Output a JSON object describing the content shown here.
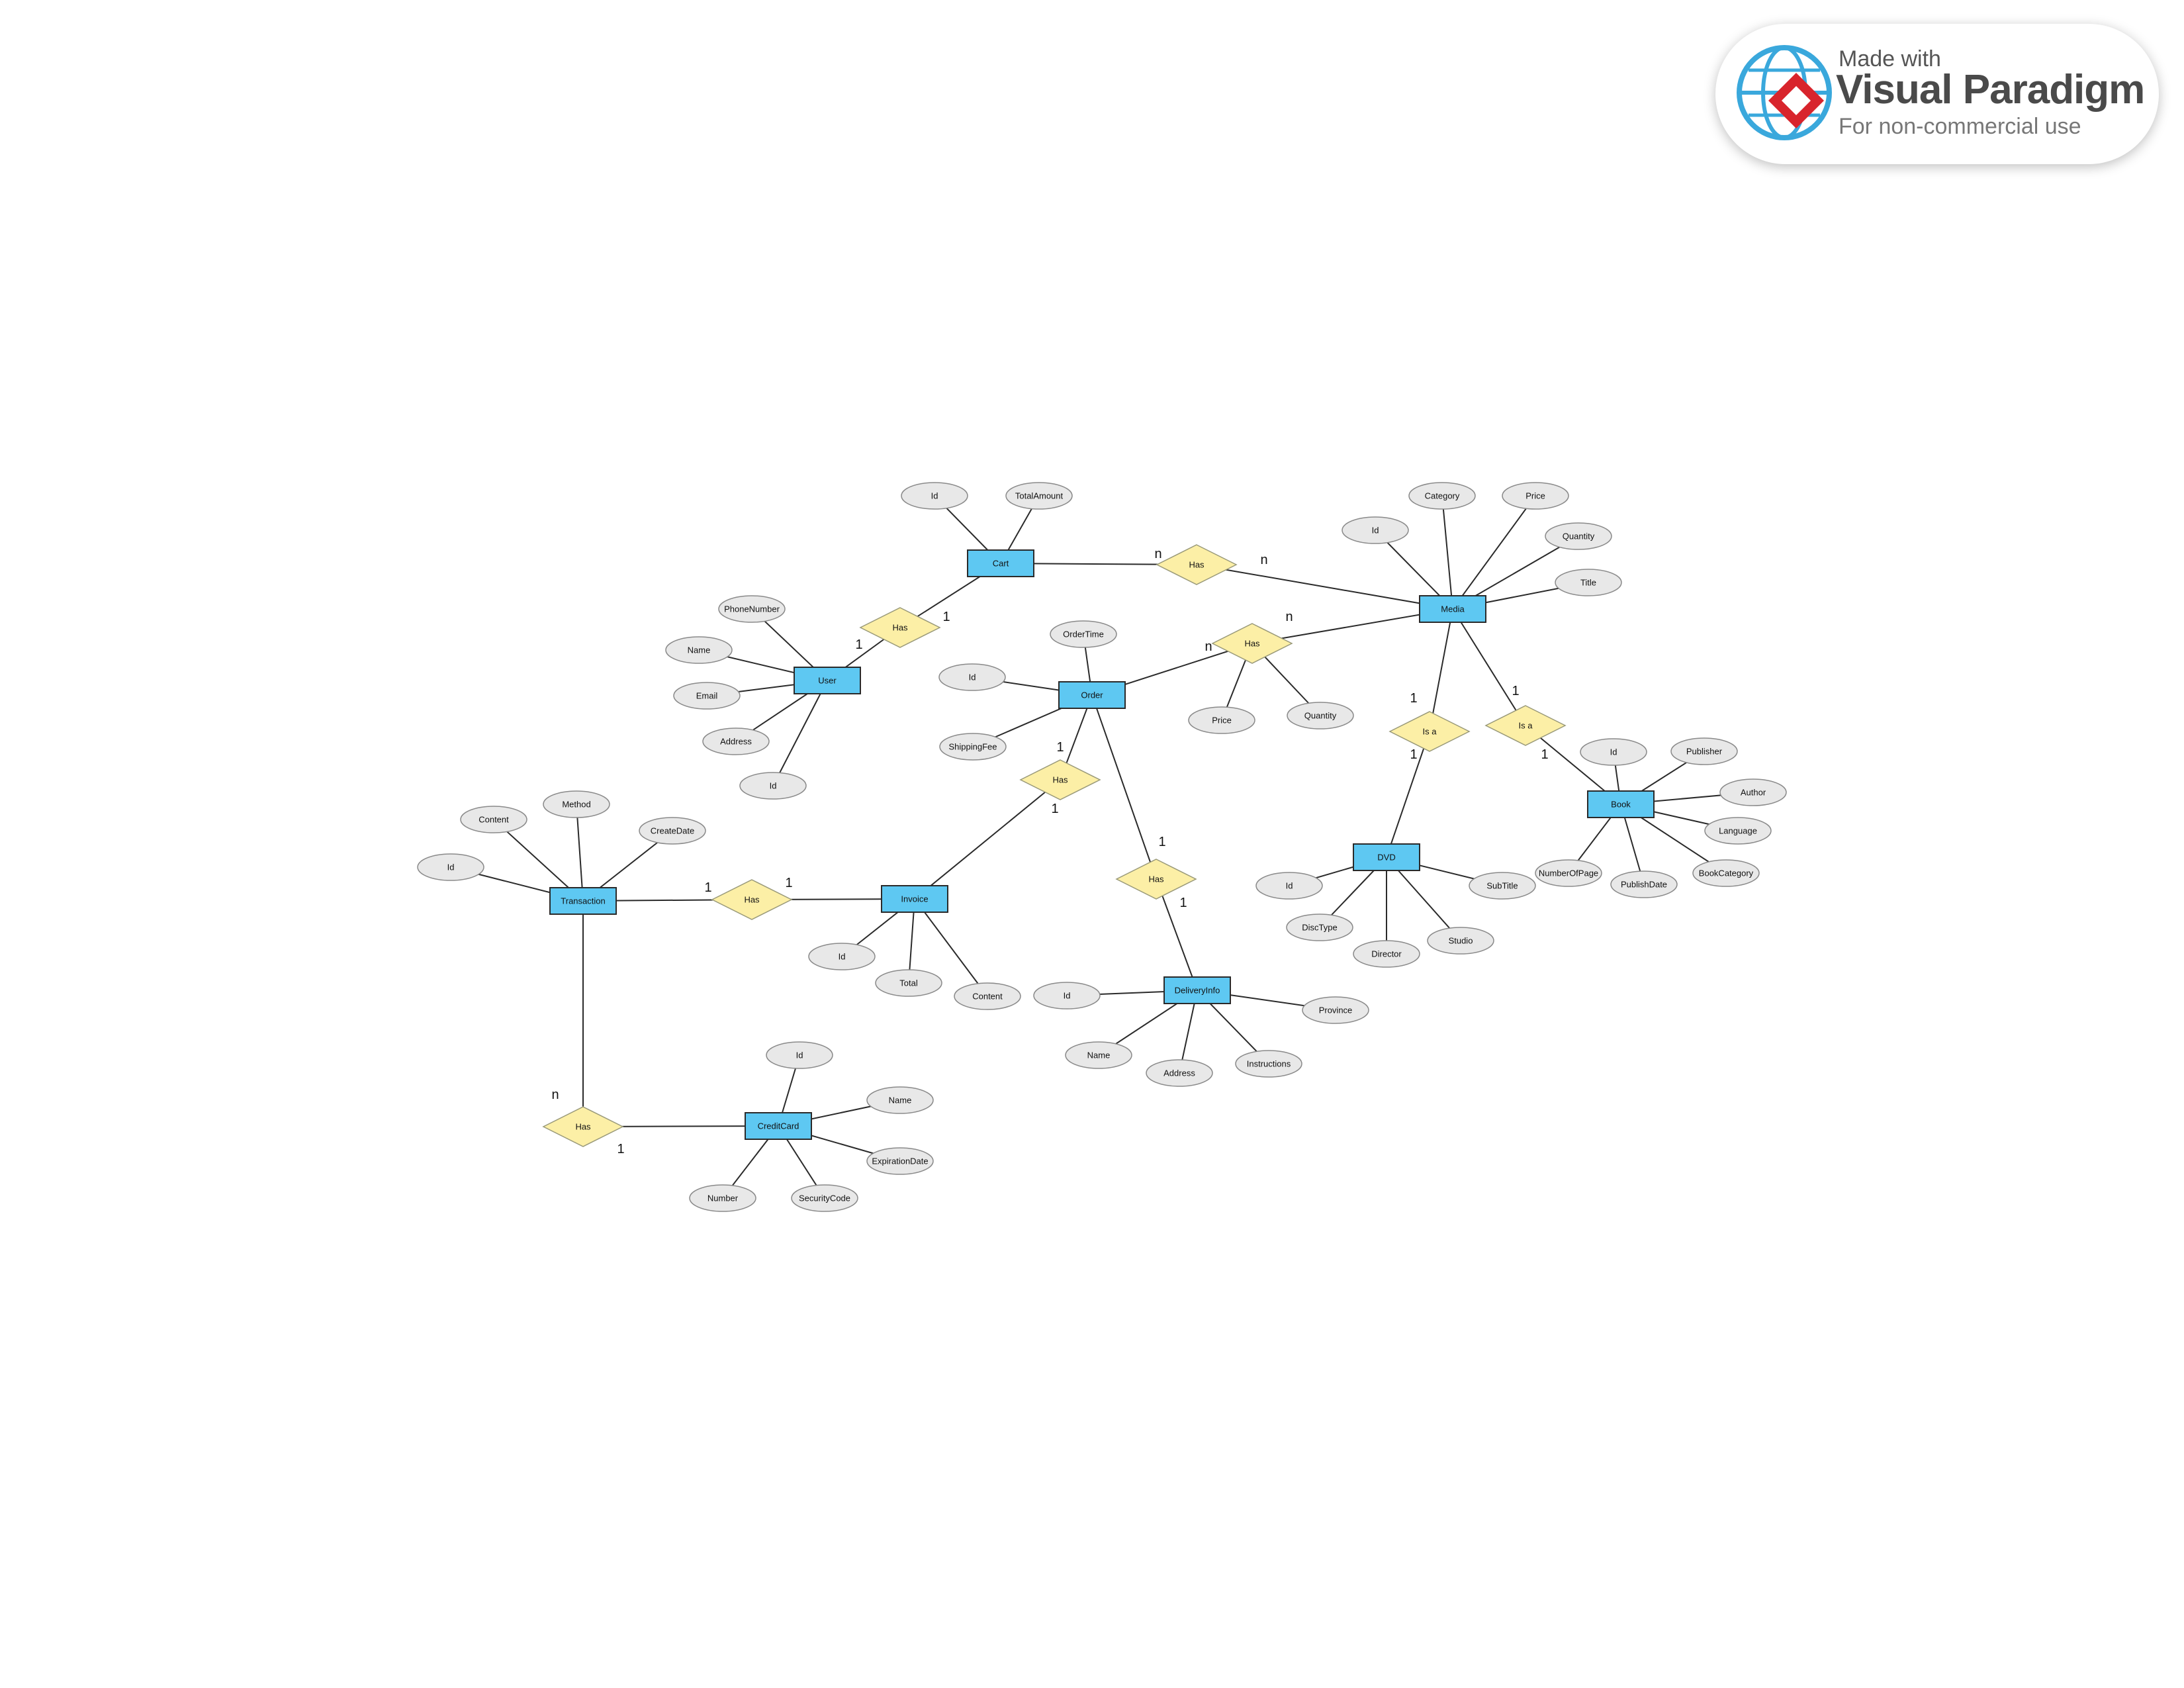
{
  "entities": [
    {
      "id": "cart",
      "label": "Cart"
    },
    {
      "id": "media",
      "label": "Media"
    },
    {
      "id": "user",
      "label": "User"
    },
    {
      "id": "order",
      "label": "Order"
    },
    {
      "id": "invoice",
      "label": "Invoice"
    },
    {
      "id": "transaction",
      "label": "Transaction"
    },
    {
      "id": "creditcard",
      "label": "CreditCard"
    },
    {
      "id": "deliveryinfo",
      "label": "DeliveryInfo"
    },
    {
      "id": "dvd",
      "label": "DVD"
    },
    {
      "id": "book",
      "label": "Book"
    }
  ],
  "relationships": [
    {
      "id": "r-user-cart",
      "label": "Has"
    },
    {
      "id": "r-cart-media",
      "label": "Has"
    },
    {
      "id": "r-order-media",
      "label": "Has"
    },
    {
      "id": "r-order-invoice",
      "label": "Has"
    },
    {
      "id": "r-order-delivery",
      "label": "Has"
    },
    {
      "id": "r-transaction-invoice",
      "label": "Has"
    },
    {
      "id": "r-transaction-card",
      "label": "Has"
    },
    {
      "id": "r-media-dvd",
      "label": "Is a"
    },
    {
      "id": "r-media-book",
      "label": "Is a"
    }
  ],
  "attributes": [
    {
      "id": "cart-id",
      "owner": "cart",
      "label": "Id"
    },
    {
      "id": "cart-total",
      "owner": "cart",
      "label": "TotalAmount"
    },
    {
      "id": "media-id",
      "owner": "media",
      "label": "Id"
    },
    {
      "id": "media-category",
      "owner": "media",
      "label": "Category"
    },
    {
      "id": "media-price",
      "owner": "media",
      "label": "Price"
    },
    {
      "id": "media-quantity",
      "owner": "media",
      "label": "Quantity"
    },
    {
      "id": "media-title",
      "owner": "media",
      "label": "Title"
    },
    {
      "id": "user-phone",
      "owner": "user",
      "label": "PhoneNumber"
    },
    {
      "id": "user-name",
      "owner": "user",
      "label": "Name"
    },
    {
      "id": "user-email",
      "owner": "user",
      "label": "Email"
    },
    {
      "id": "user-address",
      "owner": "user",
      "label": "Address"
    },
    {
      "id": "user-id",
      "owner": "user",
      "label": "Id"
    },
    {
      "id": "order-time",
      "owner": "order",
      "label": "OrderTime"
    },
    {
      "id": "order-id",
      "owner": "order",
      "label": "Id"
    },
    {
      "id": "order-shipping",
      "owner": "order",
      "label": "ShippingFee"
    },
    {
      "id": "om-price",
      "owner": "r-order-media",
      "label": "Price"
    },
    {
      "id": "om-quantity",
      "owner": "r-order-media",
      "label": "Quantity"
    },
    {
      "id": "invoice-id",
      "owner": "invoice",
      "label": "Id"
    },
    {
      "id": "invoice-total",
      "owner": "invoice",
      "label": "Total"
    },
    {
      "id": "invoice-content",
      "owner": "invoice",
      "label": "Content"
    },
    {
      "id": "tx-content",
      "owner": "transaction",
      "label": "Content"
    },
    {
      "id": "tx-method",
      "owner": "transaction",
      "label": "Method"
    },
    {
      "id": "tx-createdate",
      "owner": "transaction",
      "label": "CreateDate"
    },
    {
      "id": "tx-id",
      "owner": "transaction",
      "label": "Id"
    },
    {
      "id": "cc-id",
      "owner": "creditcard",
      "label": "Id"
    },
    {
      "id": "cc-name",
      "owner": "creditcard",
      "label": "Name"
    },
    {
      "id": "cc-expiration",
      "owner": "creditcard",
      "label": "ExpirationDate"
    },
    {
      "id": "cc-number",
      "owner": "creditcard",
      "label": "Number"
    },
    {
      "id": "cc-security",
      "owner": "creditcard",
      "label": "SecurityCode"
    },
    {
      "id": "di-id",
      "owner": "deliveryinfo",
      "label": "Id"
    },
    {
      "id": "di-province",
      "owner": "deliveryinfo",
      "label": "Province"
    },
    {
      "id": "di-name",
      "owner": "deliveryinfo",
      "label": "Name"
    },
    {
      "id": "di-address",
      "owner": "deliveryinfo",
      "label": "Address"
    },
    {
      "id": "di-instructions",
      "owner": "deliveryinfo",
      "label": "Instructions"
    },
    {
      "id": "dvd-id",
      "owner": "dvd",
      "label": "Id"
    },
    {
      "id": "dvd-disctype",
      "owner": "dvd",
      "label": "DiscType"
    },
    {
      "id": "dvd-director",
      "owner": "dvd",
      "label": "Director"
    },
    {
      "id": "dvd-studio",
      "owner": "dvd",
      "label": "Studio"
    },
    {
      "id": "dvd-subtitle",
      "owner": "dvd",
      "label": "SubTitle"
    },
    {
      "id": "book-id",
      "owner": "book",
      "label": "Id"
    },
    {
      "id": "book-publisher",
      "owner": "book",
      "label": "Publisher"
    },
    {
      "id": "book-author",
      "owner": "book",
      "label": "Author"
    },
    {
      "id": "book-language",
      "owner": "book",
      "label": "Language"
    },
    {
      "id": "book-category",
      "owner": "book",
      "label": "BookCategory"
    },
    {
      "id": "book-publishdate",
      "owner": "book",
      "label": "PublishDate"
    },
    {
      "id": "book-pages",
      "owner": "book",
      "label": "NumberOfPage"
    }
  ],
  "connections": [
    {
      "from": "user",
      "to": "r-user-cart",
      "card": "1"
    },
    {
      "from": "cart",
      "to": "r-user-cart",
      "card": "1"
    },
    {
      "from": "cart",
      "to": "r-cart-media",
      "card": "n"
    },
    {
      "from": "media",
      "to": "r-cart-media",
      "card": "n"
    },
    {
      "from": "order",
      "to": "r-order-media",
      "card": "n"
    },
    {
      "from": "media",
      "to": "r-order-media",
      "card": "n"
    },
    {
      "from": "order",
      "to": "r-order-invoice",
      "card": "1"
    },
    {
      "from": "invoice",
      "to": "r-order-invoice",
      "card": "1"
    },
    {
      "from": "order",
      "to": "r-order-delivery",
      "card": "1"
    },
    {
      "from": "deliveryinfo",
      "to": "r-order-delivery",
      "card": "1"
    },
    {
      "from": "transaction",
      "to": "r-transaction-invoice",
      "card": "1"
    },
    {
      "from": "invoice",
      "to": "r-transaction-invoice",
      "card": "1"
    },
    {
      "from": "transaction",
      "to": "r-transaction-card",
      "card": "n"
    },
    {
      "from": "creditcard",
      "to": "r-transaction-card",
      "card": "1"
    },
    {
      "from": "media",
      "to": "r-media-dvd",
      "card": "1"
    },
    {
      "from": "dvd",
      "to": "r-media-dvd",
      "card": "1"
    },
    {
      "from": "media",
      "to": "r-media-book",
      "card": "1"
    },
    {
      "from": "book",
      "to": "r-media-book",
      "card": "1"
    }
  ],
  "badge": {
    "made_with": "Made with",
    "brand": "Visual Paradigm",
    "subtitle": "For non-commercial use",
    "colors": {
      "globe": "#3aa8dc",
      "diamond": "#d8242c"
    }
  }
}
